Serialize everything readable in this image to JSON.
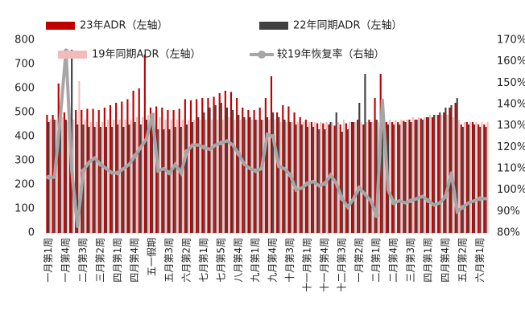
{
  "chart_data": {
    "type": "bar_line",
    "categories": [
      "一月第1周",
      null,
      null,
      "一月第4周",
      null,
      null,
      "二月第3周",
      null,
      null,
      "三月第2周",
      null,
      null,
      "四月第1周",
      null,
      null,
      "四月第4周",
      null,
      null,
      "五一假期",
      null,
      null,
      "五月第3周",
      null,
      null,
      "六月第2周",
      null,
      null,
      "七月第1周",
      null,
      null,
      "七月第5周",
      null,
      null,
      "八月第4周",
      null,
      null,
      "九月第1周",
      null,
      null,
      "九月第4周",
      null,
      null,
      "十月第3周",
      null,
      null,
      "十一月第1周",
      null,
      null,
      "十一月第4周",
      null,
      null,
      "十二月第3周",
      null,
      null,
      "一月第2周",
      null,
      null,
      "二月第1周",
      null,
      null,
      "二月第4周",
      null,
      null,
      "三月第3周",
      null,
      null,
      "四月第1周",
      null,
      null,
      "四月第4周",
      null,
      null,
      "五月第2周",
      null,
      null,
      "六月第1周",
      null
    ],
    "series": [
      {
        "name": "23年ADR（左轴）",
        "color": "#c00000",
        "values": [
          490,
          490,
          620,
          500,
          480,
          510,
          510,
          515,
          515,
          510,
          520,
          530,
          540,
          545,
          555,
          590,
          600,
          740,
          520,
          525,
          520,
          510,
          510,
          515,
          555,
          550,
          555,
          560,
          560,
          565,
          580,
          590,
          585,
          560,
          520,
          510,
          510,
          520,
          560,
          650,
          500,
          530,
          525,
          500,
          480,
          470,
          460,
          455,
          455,
          450,
          445,
          450,
          455,
          460,
          470,
          450,
          470,
          560,
          660,
          460,
          460,
          460,
          465,
          470,
          470,
          475,
          480,
          480,
          490,
          500,
          520,
          540,
          450,
          460,
          460,
          450,
          450
        ]
      },
      {
        "name": "22年同期ADR（左轴）",
        "color": "#404040",
        "values": [
          460,
          470,
          480,
          470,
          760,
          450,
          450,
          440,
          440,
          440,
          440,
          440,
          450,
          440,
          450,
          460,
          450,
          470,
          460,
          430,
          430,
          430,
          440,
          440,
          450,
          460,
          480,
          500,
          520,
          530,
          540,
          520,
          510,
          490,
          480,
          480,
          470,
          470,
          480,
          500,
          480,
          470,
          460,
          450,
          450,
          440,
          440,
          430,
          430,
          460,
          500,
          420,
          430,
          460,
          540,
          660,
          460,
          470,
          480,
          450,
          450,
          450,
          460,
          460,
          470,
          470,
          480,
          490,
          500,
          520,
          530,
          560,
          440,
          450,
          450,
          440,
          440
        ]
      },
      {
        "name": "19年同期ADR（左轴）",
        "color": "#f2bcbc",
        "values": [
          470,
          470,
          480,
          460,
          470,
          630,
          470,
          460,
          460,
          460,
          470,
          470,
          470,
          470,
          470,
          480,
          480,
          490,
          500,
          480,
          470,
          470,
          470,
          470,
          470,
          470,
          470,
          470,
          470,
          470,
          470,
          480,
          470,
          470,
          470,
          470,
          470,
          470,
          470,
          470,
          460,
          460,
          460,
          460,
          460,
          460,
          460,
          460,
          460,
          460,
          460,
          470,
          460,
          460,
          460,
          460,
          460,
          460,
          460,
          470,
          470,
          470,
          470,
          480,
          480,
          480,
          490,
          490,
          490,
          490,
          480,
          470,
          460,
          460,
          460,
          460,
          460
        ]
      },
      {
        "name": "较19年恢复率（右轴）",
        "color": "#a6a6a6",
        "axis": "y2",
        "values": [
          106,
          106,
          134,
          165,
          109,
          83,
          109,
          113,
          115,
          112,
          110,
          108,
          108,
          110,
          112,
          116,
          120,
          124,
          135,
          109,
          110,
          108,
          112,
          108,
          118,
          121,
          121,
          120,
          119,
          121,
          122,
          123,
          121,
          117,
          112,
          110,
          109,
          110,
          126,
          125,
          111,
          110,
          107,
          100,
          101,
          103,
          104,
          102,
          103,
          107,
          103,
          96,
          92,
          96,
          101,
          98,
          95,
          88,
          142,
          100,
          94,
          95,
          94,
          95,
          96,
          97,
          95,
          93,
          94,
          97,
          108,
          90,
          92,
          94,
          95,
          96,
          96
        ]
      }
    ],
    "ylim": [
      0,
      800
    ],
    "yticks": [
      0,
      100,
      200,
      300,
      400,
      500,
      600,
      700,
      800
    ],
    "y2lim": [
      80,
      170
    ],
    "y2ticks": [
      {
        "value": 80,
        "label": "80%"
      },
      {
        "value": 90,
        "label": "90%"
      },
      {
        "value": 100,
        "label": "100%"
      },
      {
        "value": 110,
        "label": "110%"
      },
      {
        "value": 120,
        "label": "120%"
      },
      {
        "value": 130,
        "label": "130%"
      },
      {
        "value": 140,
        "label": "140%"
      },
      {
        "value": 150,
        "label": "150%"
      },
      {
        "value": 160,
        "label": "160%"
      },
      {
        "value": 170,
        "label": "170%"
      }
    ]
  }
}
